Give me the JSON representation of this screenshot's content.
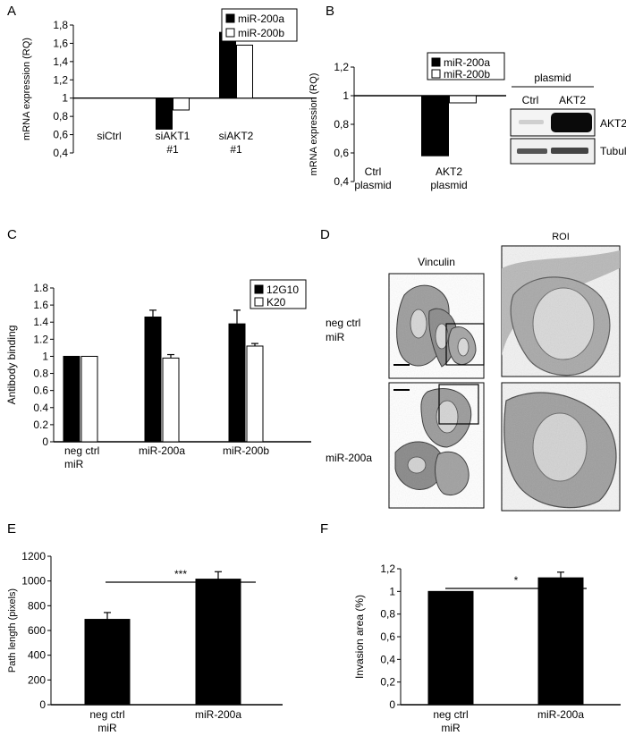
{
  "panels": {
    "A": "A",
    "B": "B",
    "C": "C",
    "D": "D",
    "E": "E",
    "F": "F"
  },
  "chart_data": [
    {
      "panel": "A",
      "type": "bar",
      "ylabel": "mRNA expression (RQ)",
      "ylim": [
        0.4,
        1.8
      ],
      "baseline": 1,
      "yticks": [
        "0,4",
        "0,6",
        "0,8",
        "1",
        "1,2",
        "1,4",
        "1,6",
        "1,8"
      ],
      "categories": [
        [
          "siCtrl"
        ],
        [
          "siAKT1",
          "#1"
        ],
        [
          "siAKT2",
          "#1"
        ]
      ],
      "series": [
        {
          "name": "miR-200a",
          "color": "#000000",
          "values": [
            1.0,
            0.66,
            1.72
          ]
        },
        {
          "name": "miR-200b",
          "color": "#ffffff",
          "values": [
            1.0,
            0.87,
            1.58
          ]
        }
      ],
      "legend": "top-right"
    },
    {
      "panel": "B",
      "type": "bar",
      "ylabel": "mRNA expression (RQ)",
      "ylim": [
        0.4,
        1.2
      ],
      "baseline": 1,
      "yticks": [
        "0,4",
        "0,6",
        "0,8",
        "1",
        "1,2"
      ],
      "categories": [
        [
          "Ctrl",
          "plasmid"
        ],
        [
          "AKT2",
          "plasmid"
        ]
      ],
      "series": [
        {
          "name": "miR-200a",
          "color": "#000000",
          "values": [
            1.0,
            0.58
          ]
        },
        {
          "name": "miR-200b",
          "color": "#ffffff",
          "values": [
            1.0,
            0.95
          ]
        }
      ],
      "legend": "top-right"
    },
    {
      "panel": "C",
      "type": "bar",
      "ylabel": "Antibody binding",
      "ylim": [
        0,
        1.8
      ],
      "yticks": [
        "0",
        "0.2",
        "0.4",
        "0.6",
        "0.8",
        "1",
        "1.2",
        "1.4",
        "1.6",
        "1.8"
      ],
      "categories": [
        [
          "neg ctrl",
          "miR"
        ],
        [
          "miR-200a"
        ],
        [
          "miR-200b"
        ]
      ],
      "series": [
        {
          "name": "12G10",
          "color": "#000000",
          "values": [
            1.0,
            1.46,
            1.38
          ],
          "errors": [
            0.0,
            0.08,
            0.16
          ]
        },
        {
          "name": "K20",
          "color": "#ffffff",
          "values": [
            1.0,
            0.98,
            1.12
          ],
          "errors": [
            0.0,
            0.04,
            0.03
          ]
        }
      ],
      "legend": "top-right"
    },
    {
      "panel": "E",
      "type": "bar",
      "ylabel": "Path length (pixels)",
      "ylim": [
        0,
        1200
      ],
      "yticks": [
        "0",
        "200",
        "400",
        "600",
        "800",
        "1000",
        "1200"
      ],
      "categories": [
        [
          "neg ctrl",
          "miR"
        ],
        [
          "miR-200a"
        ]
      ],
      "series": [
        {
          "name": "",
          "color": "#000000",
          "values": [
            690,
            1015
          ],
          "errors": [
            55,
            60
          ]
        }
      ],
      "significance": "***"
    },
    {
      "panel": "F",
      "type": "bar",
      "ylabel": "Invasion area (%)",
      "ylim": [
        0,
        1.2
      ],
      "yticks": [
        "0",
        "0,2",
        "0,4",
        "0,6",
        "0,8",
        "1",
        "1,2"
      ],
      "categories": [
        [
          "neg ctrl",
          "miR"
        ],
        [
          "miR-200a"
        ]
      ],
      "series": [
        {
          "name": "",
          "color": "#000000",
          "values": [
            1.0,
            1.12
          ],
          "errors": [
            0.0,
            0.05
          ]
        }
      ],
      "significance": "*"
    }
  ],
  "western": {
    "header": "plasmid",
    "lanes": [
      "Ctrl",
      "AKT2"
    ],
    "bands": [
      "AKT2",
      "Tubulin"
    ]
  },
  "micrograph": {
    "stain": "Vinculin",
    "roi": "ROI",
    "rows": [
      [
        "neg ctrl",
        "miR"
      ],
      [
        "miR-200a"
      ]
    ]
  }
}
